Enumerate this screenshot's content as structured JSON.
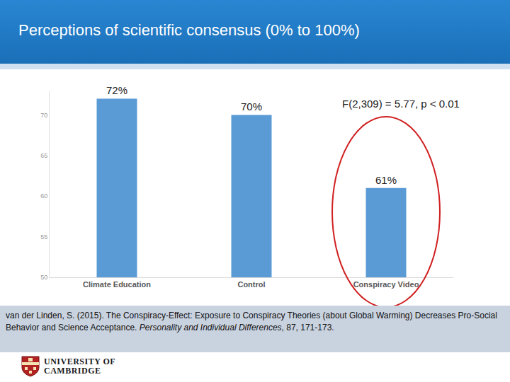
{
  "chart_data": {
    "type": "bar",
    "title": "Perceptions of scientific consensus (0% to 100%)",
    "categories": [
      "Climate Education",
      "Control",
      "Conspiracy Video"
    ],
    "values": [
      72,
      70,
      61
    ],
    "value_labels": [
      "72%",
      "70%",
      "61%"
    ],
    "color": "#5b9bd5",
    "ylim": [
      50,
      73
    ],
    "yticks": [
      50,
      55,
      60,
      65,
      70
    ],
    "grid": false,
    "data_labels": true,
    "annotations": [
      "F(2,309) = 5.77, p < 0.01"
    ]
  },
  "citation": {
    "text": "van der Linden, S. (2015). The Conspiracy-Effect: Exposure to Conspiracy Theories (about Global Warming) Decreases Pro-Social Behavior and Science Acceptance.",
    "journal": "Personality and Individual Differences",
    "details": ", 87, 171-173."
  },
  "logo": [
    "UNIVERSITY OF",
    "CAMBRIDGE"
  ]
}
